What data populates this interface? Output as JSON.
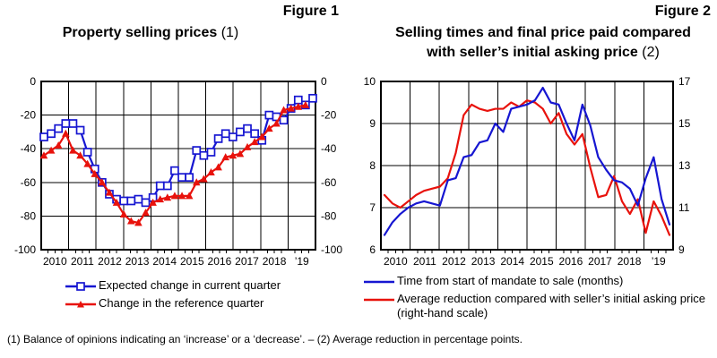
{
  "page": {
    "background": "#ffffff"
  },
  "colors": {
    "blue": "#1616d1",
    "red": "#e8120c",
    "grid": "#000000",
    "text": "#000000"
  },
  "footnote": "(1) Balance of opinions indicating an ‘increase’ or a ‘decrease’. – (2) Average reduction in percentage points.",
  "chart_data": [
    {
      "type": "line",
      "figure_label": "Figure 1",
      "title_lines": [
        "Property selling prices"
      ],
      "title_suffix": " (1)",
      "x_unit": "quarterly",
      "x_start": "2010-Q1",
      "x_tick_labels": [
        "2010",
        "2011",
        "2012",
        "2013",
        "2014",
        "2015",
        "2016",
        "2017",
        "2018",
        "’19"
      ],
      "y_left": {
        "min": -100,
        "max": 0,
        "ticks": [
          0,
          -20,
          -40,
          -60,
          -80,
          -100
        ]
      },
      "y_right": {
        "min": -100,
        "max": 0,
        "ticks": [
          0,
          -20,
          -40,
          -60,
          -80,
          -100
        ]
      },
      "grid": true,
      "legend_position": "bottom",
      "draw_order": [
        0,
        1
      ],
      "series": [
        {
          "name": "Expected change in current quarter",
          "color": "#1616d1",
          "marker": "square-open",
          "axis": "left",
          "values": [
            -33,
            -31,
            -28,
            -25,
            -25,
            -29,
            -42,
            -52,
            -60,
            -67,
            -70,
            -71,
            -71,
            -70,
            -72,
            -69,
            -62,
            -62,
            -53,
            -57,
            -57,
            -41,
            -44,
            -42,
            -34,
            -31,
            -33,
            -30,
            -28,
            -31,
            -35,
            -20,
            -21,
            -23,
            -16,
            -11,
            -14,
            -10
          ]
        },
        {
          "name": "Change in the reference quarter",
          "color": "#e8120c",
          "marker": "triangle",
          "axis": "left",
          "values": [
            -44,
            -41,
            -38,
            -31,
            -41,
            -44,
            -49,
            -55,
            -60,
            -66,
            -72,
            -79,
            -83,
            -84,
            -78,
            -72,
            -70,
            -69,
            -68,
            -68,
            -68,
            -60,
            -58,
            -54,
            -51,
            -45,
            -44,
            -43,
            -39,
            -36,
            -33,
            -28,
            -25,
            -17,
            -16,
            -15,
            -14
          ]
        }
      ]
    },
    {
      "type": "line",
      "figure_label": "Figure 2",
      "title_lines": [
        "Selling times and final price paid compared",
        "with seller’s initial asking price"
      ],
      "title_suffix": " (2)",
      "x_unit": "quarterly",
      "x_start": "2010-Q1",
      "x_tick_labels": [
        "2010",
        "2011",
        "2012",
        "2013",
        "2014",
        "2015",
        "2016",
        "2017",
        "2018",
        "’19"
      ],
      "y_left": {
        "min": 6,
        "max": 10,
        "ticks": [
          10,
          9,
          8,
          7,
          6
        ]
      },
      "y_right": {
        "min": 9,
        "max": 17,
        "ticks": [
          17,
          15,
          13,
          11,
          9
        ]
      },
      "grid": true,
      "legend_position": "bottom",
      "draw_order": [
        1,
        0
      ],
      "series": [
        {
          "name": "Time from start of mandate to sale (months)",
          "color": "#1616d1",
          "marker": "none",
          "axis": "left",
          "values": [
            6.35,
            6.65,
            6.85,
            7.0,
            7.1,
            7.15,
            7.1,
            7.05,
            7.65,
            7.7,
            8.2,
            8.25,
            8.55,
            8.6,
            9.0,
            8.8,
            9.35,
            9.4,
            9.45,
            9.55,
            9.85,
            9.5,
            9.45,
            9.0,
            8.6,
            9.45,
            8.95,
            8.2,
            7.9,
            7.65,
            7.6,
            7.45,
            7.05,
            7.7,
            8.2,
            7.2,
            6.6
          ]
        },
        {
          "name": "Average reduction compared with seller’s initial asking price (right-hand scale)",
          "color": "#e8120c",
          "marker": "none",
          "axis": "right",
          "values": [
            11.6,
            11.2,
            11.0,
            11.3,
            11.6,
            11.8,
            11.9,
            12.0,
            12.4,
            13.6,
            15.4,
            15.9,
            15.7,
            15.6,
            15.7,
            15.7,
            16.0,
            15.8,
            16.1,
            16.0,
            15.7,
            15.0,
            15.5,
            14.5,
            14.0,
            14.5,
            12.9,
            11.5,
            11.6,
            12.5,
            11.3,
            10.7,
            11.4,
            9.8,
            11.3,
            10.6,
            9.7
          ]
        }
      ]
    }
  ]
}
